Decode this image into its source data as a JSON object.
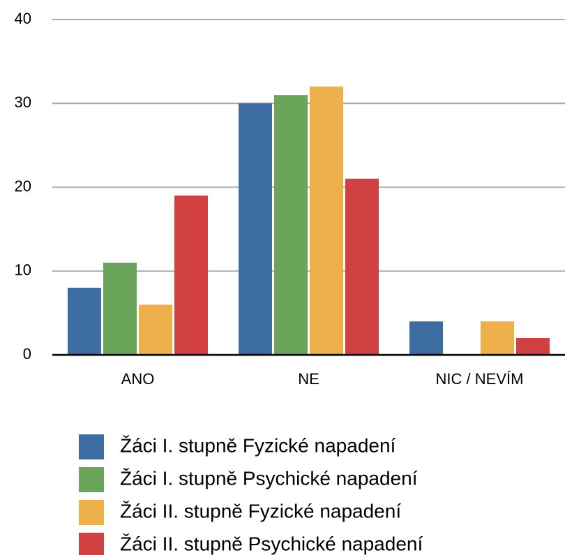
{
  "chart_data": {
    "type": "bar",
    "categories": [
      "ANO",
      "NE",
      "NIC / NEVÍM"
    ],
    "series": [
      {
        "name": "Žáci I. stupně Fyzické napadení",
        "color": "#3c6ca2",
        "values": [
          8,
          30,
          4
        ]
      },
      {
        "name": "Žáci I. stupně Psychické napadení",
        "color": "#6aa55a",
        "values": [
          11,
          31,
          0
        ]
      },
      {
        "name": "Žáci II. stupně Fyzické napadení",
        "color": "#eeb04a",
        "values": [
          6,
          32,
          4
        ]
      },
      {
        "name": "Žáci II. stupně Psychické napadení",
        "color": "#d24141",
        "values": [
          19,
          21,
          2
        ]
      }
    ],
    "ylim": [
      0,
      40
    ],
    "yticks": [
      0,
      10,
      20,
      30,
      40
    ],
    "grid": true,
    "legend": "bottom"
  }
}
